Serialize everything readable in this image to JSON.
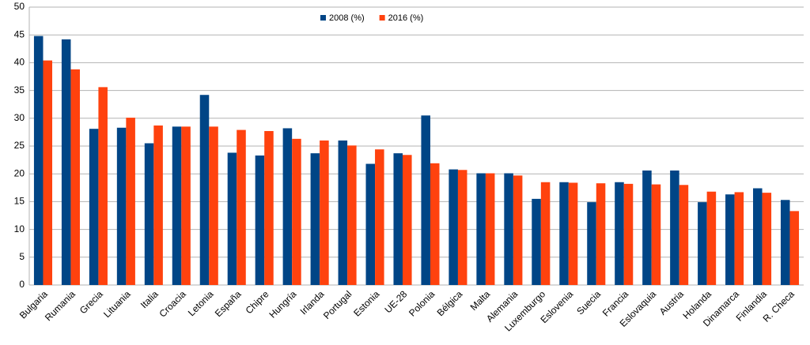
{
  "chart_data": {
    "type": "bar",
    "categories": [
      "Bulgaria",
      "Rumania",
      "Grecia",
      "Lituania",
      "Italia",
      "Croacia",
      "Letonia",
      "España",
      "Chipre",
      "Hungría",
      "Irlanda",
      "Portugal",
      "Estonia",
      "UE-28",
      "Polonia",
      "Bélgica",
      "Malta",
      "Alemania",
      "Luxemburgo",
      "Eslovenia",
      "Suecia",
      "Francia",
      "Eslovaquia",
      "Austria",
      "Holanda",
      "Dinamarca",
      "Finlandia",
      "R. Checa"
    ],
    "series": [
      {
        "name": "2008 (%)",
        "color": "#004586",
        "values": [
          44.8,
          44.2,
          28.1,
          28.3,
          25.5,
          28.5,
          34.2,
          23.8,
          23.3,
          28.2,
          23.7,
          26.0,
          21.8,
          23.7,
          30.5,
          20.8,
          20.1,
          20.1,
          15.5,
          18.5,
          14.9,
          18.5,
          20.6,
          20.6,
          14.9,
          16.3,
          17.4,
          15.3
        ]
      },
      {
        "name": "2016 (%)",
        "color": "#ff420e",
        "values": [
          40.4,
          38.8,
          35.6,
          30.1,
          28.7,
          28.5,
          28.5,
          27.9,
          27.7,
          26.3,
          26.0,
          25.1,
          24.4,
          23.4,
          21.9,
          20.7,
          20.1,
          19.7,
          18.5,
          18.4,
          18.3,
          18.2,
          18.1,
          18.0,
          16.8,
          16.7,
          16.6,
          13.3
        ]
      }
    ],
    "ylim": [
      0,
      50
    ],
    "yticks": [
      0,
      5,
      10,
      15,
      20,
      25,
      30,
      35,
      40,
      45,
      50
    ],
    "grid": true,
    "legend": "top"
  }
}
